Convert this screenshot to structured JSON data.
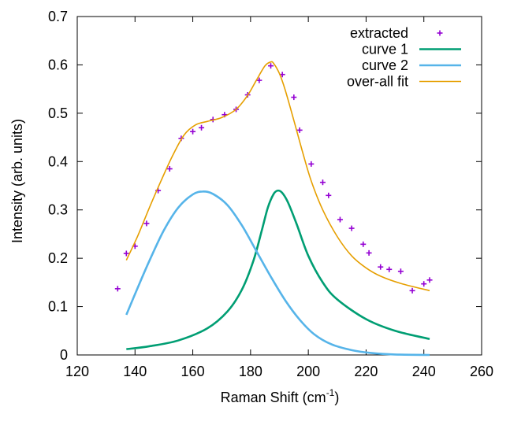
{
  "chart_data": {
    "type": "line",
    "xlabel": "Raman Shift (cm",
    "xlabel_sup": "-1",
    "xlabel_end": ")",
    "ylabel": "Intensity (arb. units)",
    "xlim": [
      120,
      260
    ],
    "ylim": [
      0,
      0.7
    ],
    "xticks": [
      120,
      140,
      160,
      180,
      200,
      220,
      240,
      260
    ],
    "yticks": [
      0,
      0.1,
      0.2,
      0.3,
      0.4,
      0.5,
      0.6,
      0.7
    ],
    "grid": false,
    "legend_position": "top-right",
    "series": [
      {
        "name": "extracted",
        "style": "points",
        "color": "#9400d3",
        "x": [
          134,
          137,
          140,
          144,
          148,
          152,
          156,
          160,
          163,
          167,
          171,
          175,
          179,
          183,
          187,
          191,
          195,
          197,
          201,
          205,
          207,
          211,
          215,
          219,
          221,
          225,
          228,
          232,
          236,
          240,
          242
        ],
        "y": [
          0.137,
          0.21,
          0.225,
          0.272,
          0.34,
          0.385,
          0.448,
          0.462,
          0.47,
          0.487,
          0.497,
          0.508,
          0.538,
          0.568,
          0.598,
          0.58,
          0.533,
          0.465,
          0.395,
          0.357,
          0.33,
          0.28,
          0.262,
          0.229,
          0.211,
          0.182,
          0.177,
          0.173,
          0.133,
          0.147,
          0.155
        ]
      },
      {
        "name": "curve 1",
        "style": "line",
        "color": "#009e73",
        "x": [
          137,
          145,
          155,
          165,
          172,
          177,
          181,
          184,
          186,
          188,
          189.5,
          191,
          193,
          196,
          200,
          205,
          210,
          220,
          230,
          242
        ],
        "y": [
          0.012,
          0.018,
          0.03,
          0.055,
          0.09,
          0.135,
          0.195,
          0.26,
          0.305,
          0.333,
          0.34,
          0.335,
          0.315,
          0.27,
          0.205,
          0.15,
          0.115,
          0.074,
          0.05,
          0.033
        ]
      },
      {
        "name": "curve 2",
        "style": "line",
        "color": "#56b4e9",
        "x": [
          137,
          141,
          145,
          150,
          155,
          160,
          163.5,
          167,
          172,
          177,
          182,
          187,
          192,
          197,
          202,
          208,
          215,
          222,
          230,
          242
        ],
        "y": [
          0.083,
          0.14,
          0.195,
          0.258,
          0.305,
          0.332,
          0.338,
          0.333,
          0.31,
          0.268,
          0.215,
          0.162,
          0.113,
          0.073,
          0.043,
          0.022,
          0.01,
          0.004,
          0.001,
          0.0
        ]
      },
      {
        "name": "over-all fit",
        "style": "line",
        "color": "#e69f00",
        "x": [
          137,
          141,
          145,
          149,
          153,
          157,
          161,
          165,
          170,
          175,
          179,
          182,
          185,
          187,
          188,
          190,
          192,
          195,
          198,
          201,
          205,
          210,
          215,
          220,
          225,
          232,
          242
        ],
        "y": [
          0.196,
          0.247,
          0.305,
          0.36,
          0.412,
          0.455,
          0.476,
          0.483,
          0.491,
          0.508,
          0.537,
          0.568,
          0.598,
          0.606,
          0.603,
          0.582,
          0.548,
          0.485,
          0.42,
          0.36,
          0.3,
          0.245,
          0.205,
          0.18,
          0.163,
          0.148,
          0.133
        ]
      }
    ]
  }
}
